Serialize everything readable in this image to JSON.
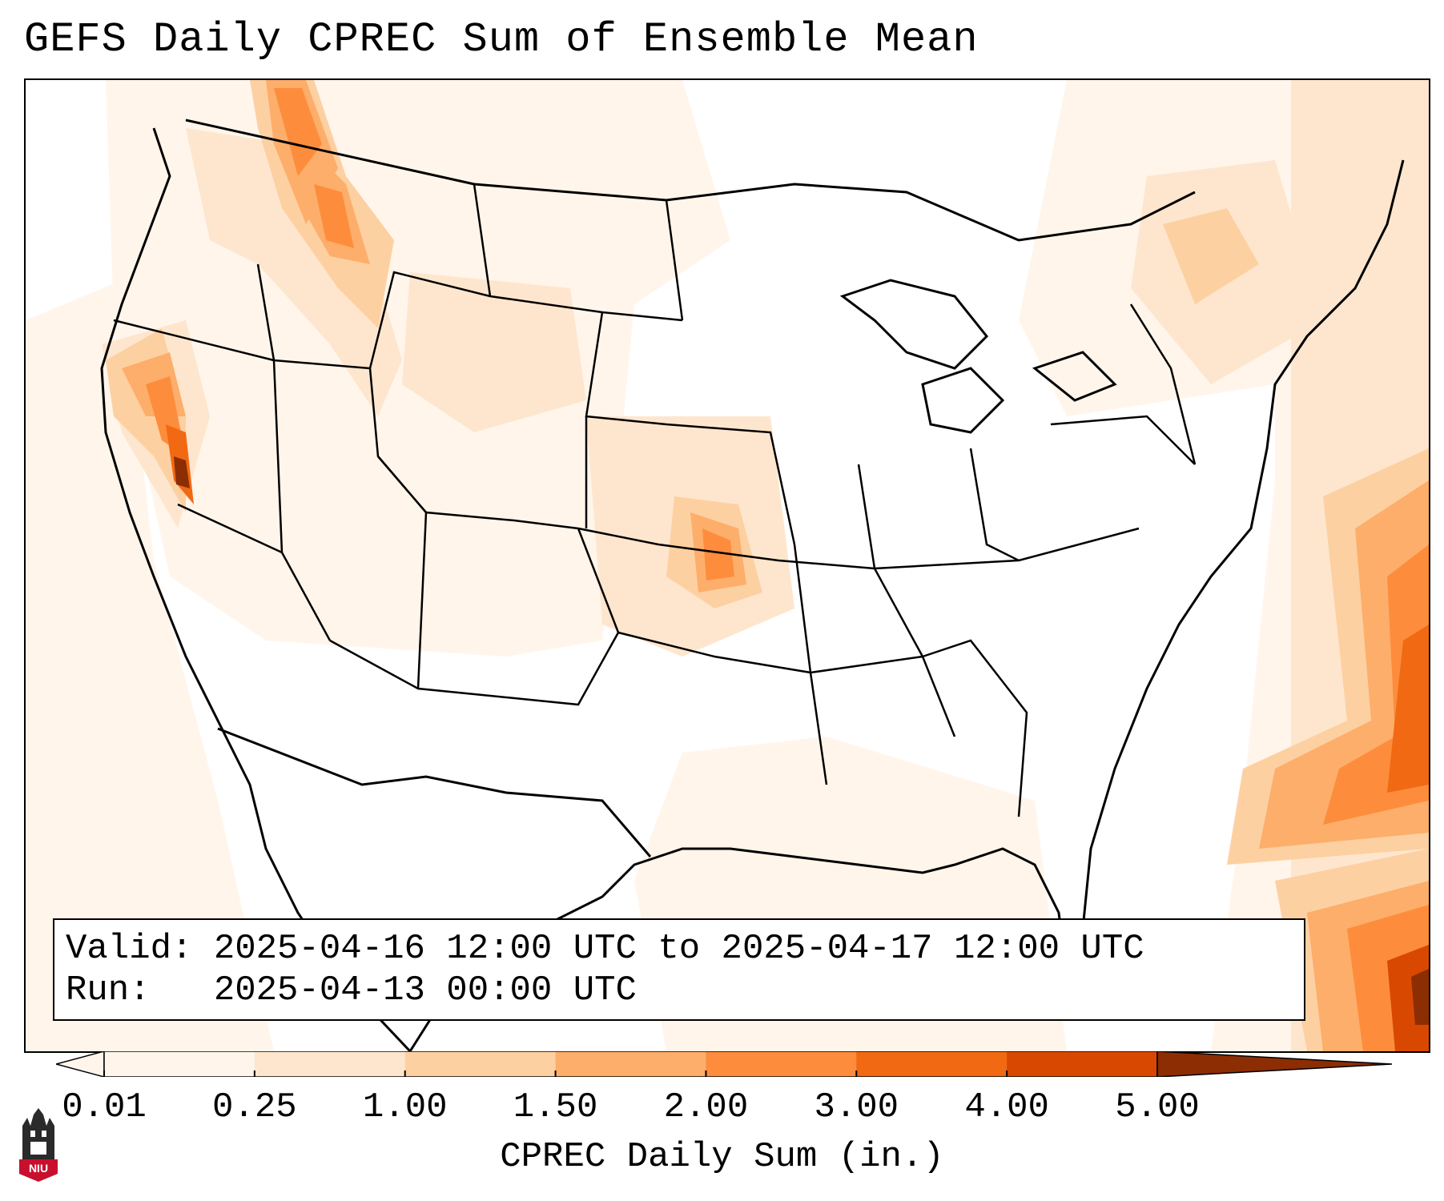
{
  "title": "GEFS Daily CPREC Sum of Ensemble Mean",
  "info": {
    "valid_label": "Valid:",
    "valid_value": "2025-04-16 12:00 UTC to 2025-04-17 12:00 UTC",
    "run_label": "Run:",
    "run_value": "2025-04-13 00:00 UTC"
  },
  "colorbar": {
    "label": "CPREC Daily Sum (in.)",
    "ticks": [
      "0.01",
      "0.25",
      "1.00",
      "1.50",
      "2.00",
      "3.00",
      "4.00",
      "5.00"
    ],
    "colors": [
      "#fff5eb",
      "#fee6ce",
      "#fdd0a2",
      "#fdae6b",
      "#fd8d3c",
      "#f16913",
      "#d94801",
      "#8c2d04"
    ]
  },
  "logo": {
    "text": "NIU",
    "color": "#c8102e"
  },
  "icons": {
    "logo": "university-tower-icon"
  }
}
